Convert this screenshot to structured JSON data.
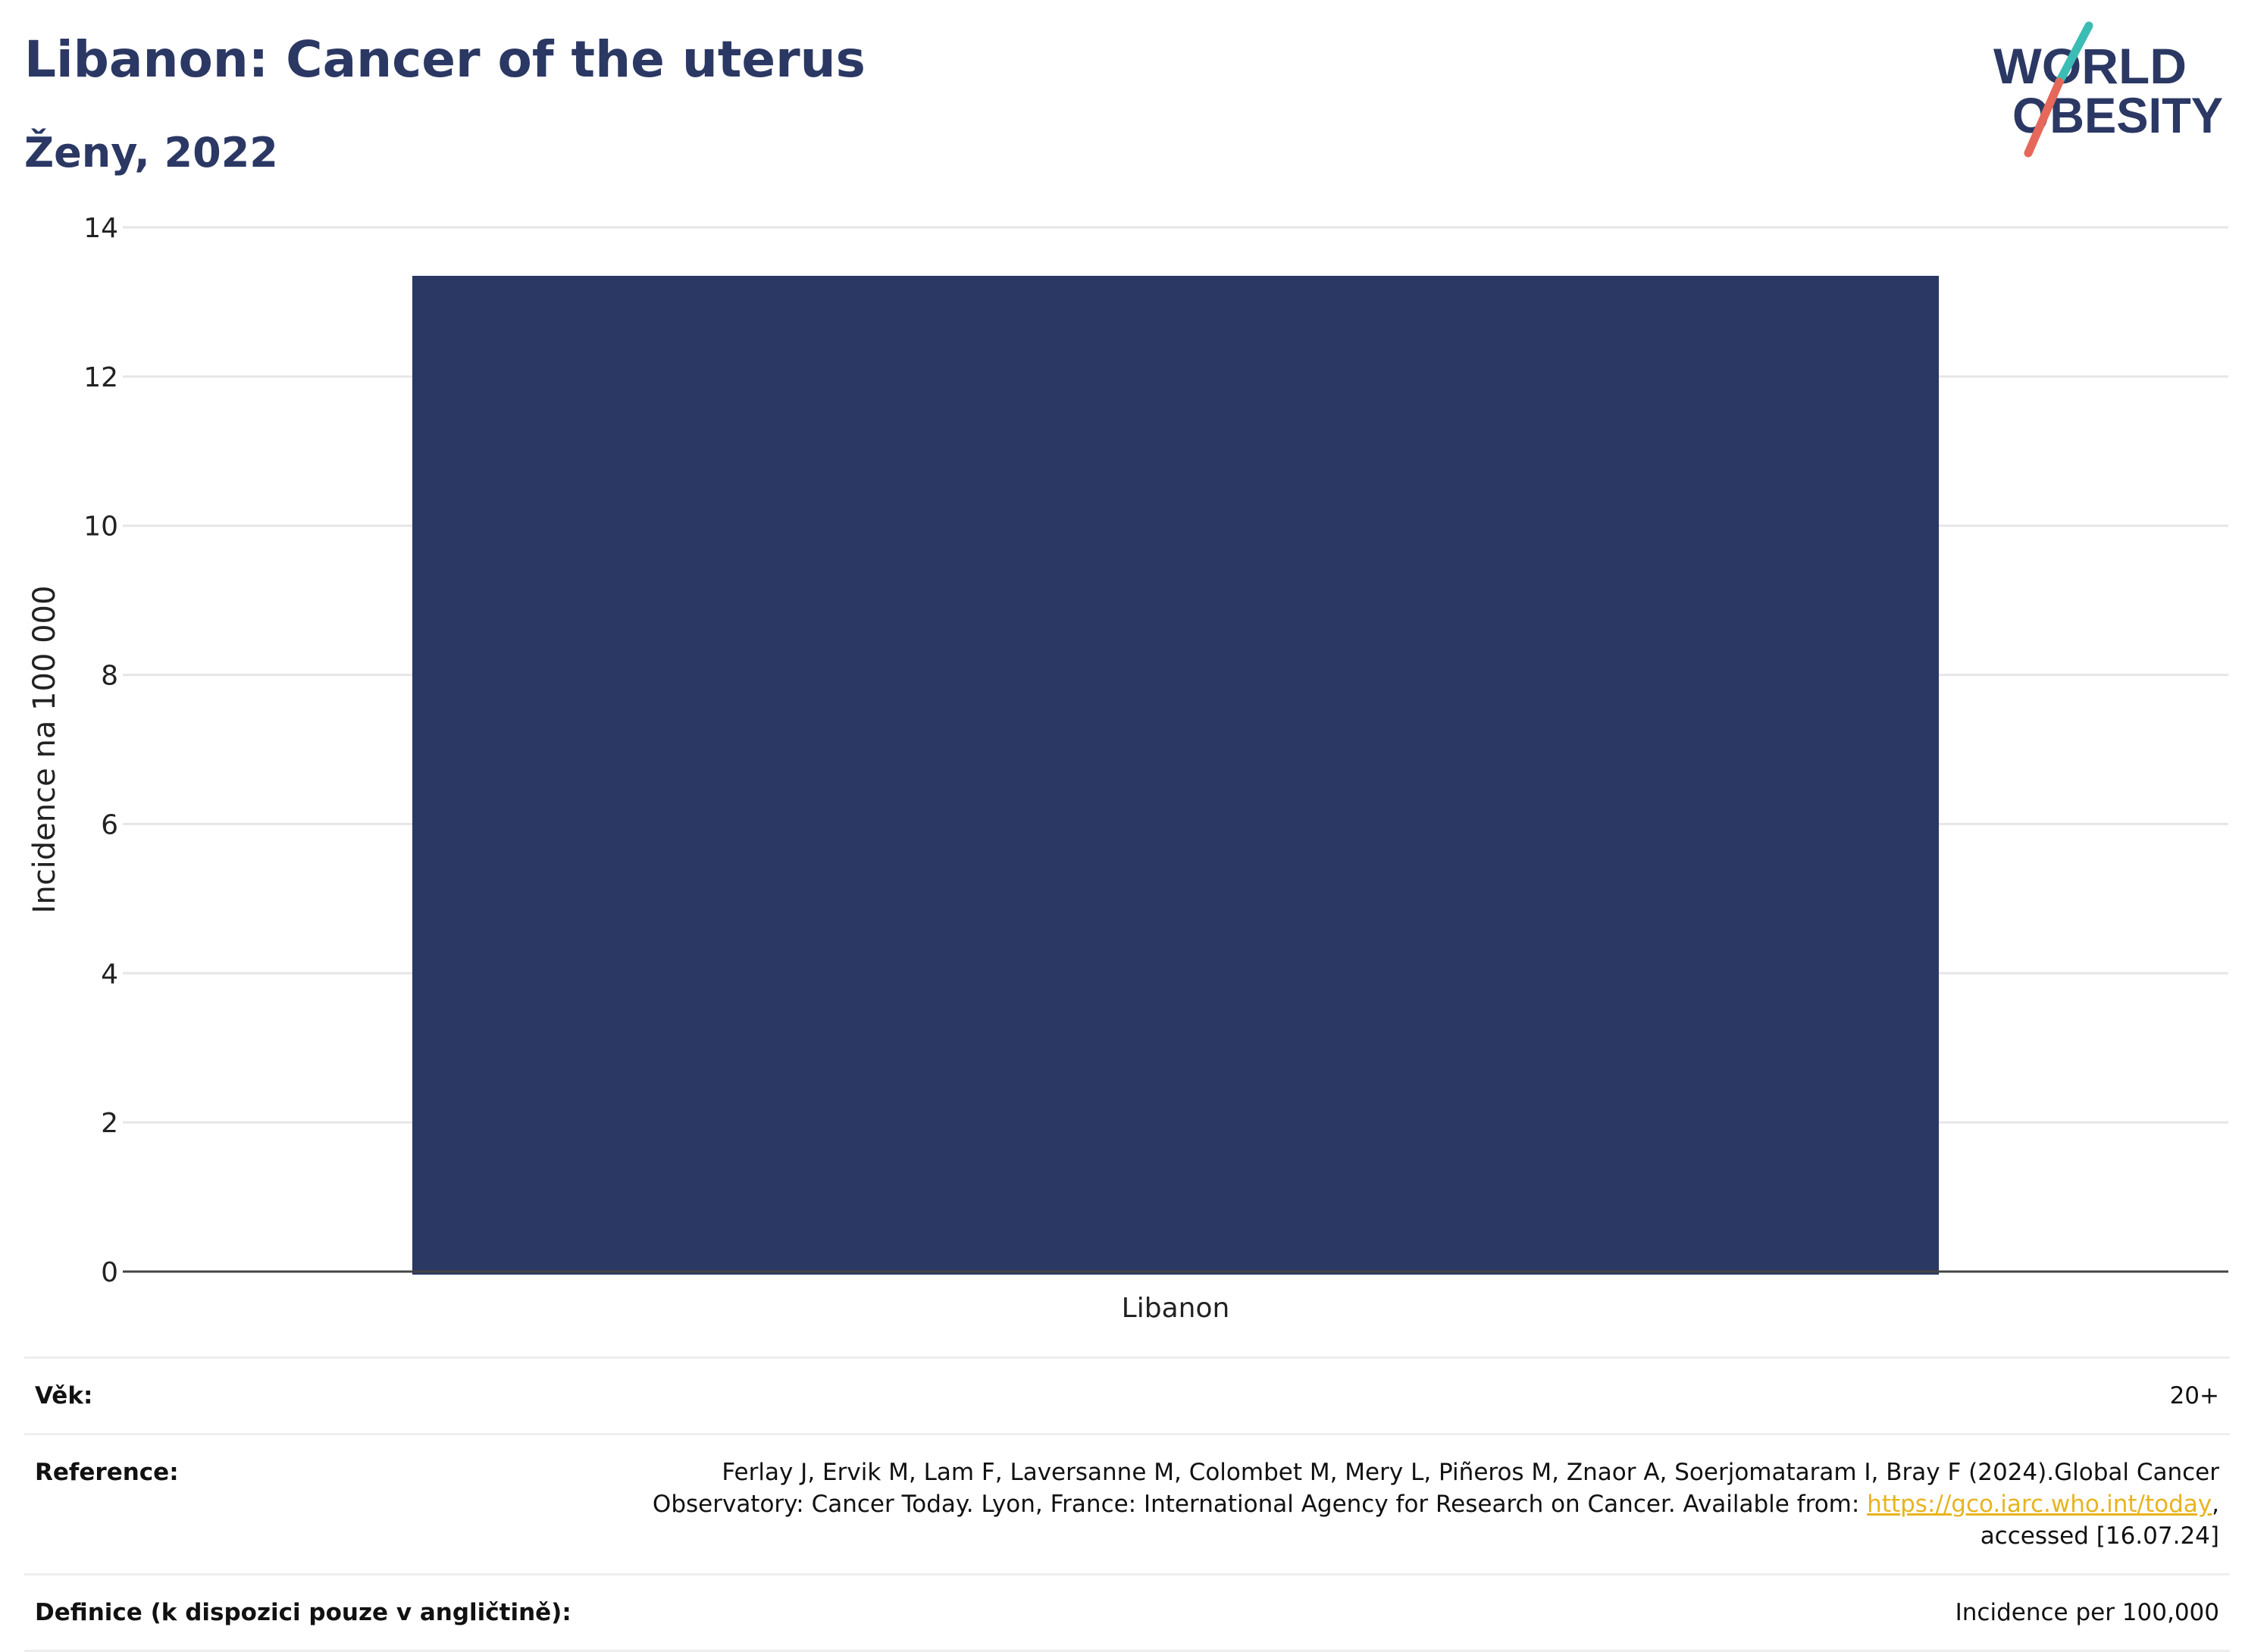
{
  "header": {
    "title": "Libanon: Cancer of the uterus",
    "subtitle": "Ženy, 2022"
  },
  "logo": {
    "line1": "WORLD",
    "line2": "OBESITY",
    "colors": {
      "text": "#2b3864",
      "slash_top": "#3bbcb5",
      "slash_bottom": "#e5685a"
    }
  },
  "chart_data": {
    "type": "bar",
    "categories": [
      "Libanon"
    ],
    "values": [
      13.35
    ],
    "title": "Libanon: Cancer of the uterus",
    "subtitle": "Ženy, 2022",
    "xlabel": "",
    "ylabel": "Incidence na 100 000",
    "ylim": [
      0,
      14
    ],
    "yticks": [
      0,
      2,
      4,
      6,
      8,
      10,
      12,
      14
    ],
    "grid": true,
    "legend": "none",
    "bar_color": "#2b3864"
  },
  "info": {
    "age_label": "Věk:",
    "age_value": "20+",
    "reference_label": "Reference:",
    "reference_text_before": "Ferlay J, Ervik M, Lam F, Laversanne M, Colombet M, Mery L, Piñeros M, Znaor A, Soerjomataram I, Bray F (2024).Global Cancer Observatory: Cancer Today. Lyon, France: International Agency for Research on Cancer. Available from: ",
    "reference_link": "https://gco.iarc.who.int/today",
    "reference_text_after": ", accessed [16.07.24]",
    "definition_label": "Definice (k dispozici pouze v angličtině):",
    "definition_value": "Incidence per 100,000"
  }
}
